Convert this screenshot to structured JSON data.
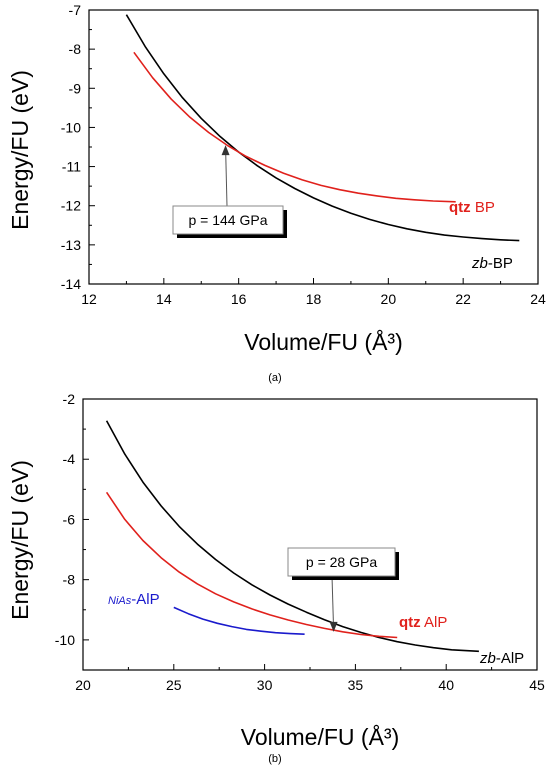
{
  "chart_data": [
    {
      "type": "line",
      "panel_label": "(a)",
      "xlabel": "Volume/FU (Å³)",
      "ylabel": "Energy/FU (eV)",
      "xlim": [
        12,
        24
      ],
      "ylim": [
        -14,
        -7
      ],
      "xticks": [
        12,
        14,
        16,
        18,
        20,
        22,
        24
      ],
      "yticks": [
        -14,
        -13,
        -12,
        -11,
        -10,
        -9,
        -8,
        -7
      ],
      "grid": false,
      "series": [
        {
          "name": "zb-BP",
          "label_prefix": "zb",
          "label_suffix": "-BP",
          "color": "#000000",
          "x": [
            13.0,
            13.5,
            14.0,
            14.5,
            15.0,
            15.5,
            16.0,
            16.5,
            17.0,
            17.5,
            18.0,
            18.5,
            19.0,
            19.5,
            20.0,
            20.5,
            21.0,
            21.5,
            22.0,
            22.5,
            23.0,
            23.5
          ],
          "y": [
            -7.12,
            -7.93,
            -8.63,
            -9.24,
            -9.77,
            -10.23,
            -10.63,
            -10.98,
            -11.29,
            -11.56,
            -11.8,
            -12.01,
            -12.19,
            -12.35,
            -12.48,
            -12.59,
            -12.68,
            -12.75,
            -12.8,
            -12.84,
            -12.87,
            -12.89
          ]
        },
        {
          "name": "qtz BP",
          "label_prefix": "qtz",
          "label_suffix": " BP",
          "color": "#e0211c",
          "x": [
            13.2,
            13.7,
            14.2,
            14.7,
            15.2,
            15.7,
            16.2,
            16.7,
            17.2,
            17.7,
            18.2,
            18.7,
            19.2,
            19.7,
            20.2,
            20.7,
            21.2,
            21.8
          ],
          "y": [
            -8.08,
            -8.73,
            -9.28,
            -9.74,
            -10.13,
            -10.46,
            -10.74,
            -10.97,
            -11.17,
            -11.34,
            -11.48,
            -11.59,
            -11.68,
            -11.75,
            -11.81,
            -11.85,
            -11.88,
            -11.9
          ]
        }
      ],
      "annotation": {
        "text": "p = 144 GPa",
        "x": 15.65,
        "y": -10.4
      }
    },
    {
      "type": "line",
      "panel_label": "(b)",
      "xlabel": "Volume/FU (Å³)",
      "ylabel": "Energy/FU (eV)",
      "xlim": [
        20,
        45
      ],
      "ylim": [
        -11,
        -2
      ],
      "xticks": [
        20,
        25,
        30,
        35,
        40,
        45
      ],
      "yticks": [
        -10,
        -8,
        -6,
        -4,
        -2
      ],
      "grid": false,
      "series": [
        {
          "name": "zb-AlP",
          "label_prefix": "zb",
          "label_suffix": "-AlP",
          "color": "#000000",
          "x": [
            21.3,
            22.3,
            23.3,
            24.3,
            25.3,
            26.3,
            27.3,
            28.3,
            29.3,
            30.3,
            31.3,
            32.3,
            33.3,
            34.3,
            35.3,
            36.3,
            37.3,
            38.3,
            39.3,
            40.3,
            41.8
          ],
          "y": [
            -2.72,
            -3.83,
            -4.76,
            -5.55,
            -6.23,
            -6.82,
            -7.33,
            -7.78,
            -8.17,
            -8.51,
            -8.81,
            -9.08,
            -9.33,
            -9.56,
            -9.75,
            -9.92,
            -10.06,
            -10.17,
            -10.26,
            -10.33,
            -10.38
          ]
        },
        {
          "name": "qtz AlP",
          "label_prefix": "qtz",
          "label_suffix": " AlP",
          "color": "#e0211c",
          "x": [
            21.3,
            22.3,
            23.3,
            24.3,
            25.3,
            26.3,
            27.3,
            28.3,
            29.3,
            30.3,
            31.3,
            32.3,
            33.3,
            34.3,
            35.3,
            36.3,
            37.3
          ],
          "y": [
            -5.1,
            -6.0,
            -6.7,
            -7.27,
            -7.75,
            -8.14,
            -8.47,
            -8.74,
            -8.97,
            -9.17,
            -9.34,
            -9.49,
            -9.62,
            -9.73,
            -9.82,
            -9.88,
            -9.92
          ]
        },
        {
          "name": "NiAs-AlP",
          "label_prefix": "NiAs",
          "label_suffix": "-AlP",
          "color": "#1a1acc",
          "x": [
            25.0,
            25.8,
            26.6,
            27.4,
            28.2,
            29.0,
            29.8,
            30.6,
            31.4,
            32.2
          ],
          "y": [
            -8.92,
            -9.13,
            -9.31,
            -9.45,
            -9.56,
            -9.65,
            -9.71,
            -9.76,
            -9.79,
            -9.81
          ]
        }
      ],
      "annotation": {
        "text": "p = 28 GPa",
        "x": 33.8,
        "y": -9.8
      }
    }
  ]
}
